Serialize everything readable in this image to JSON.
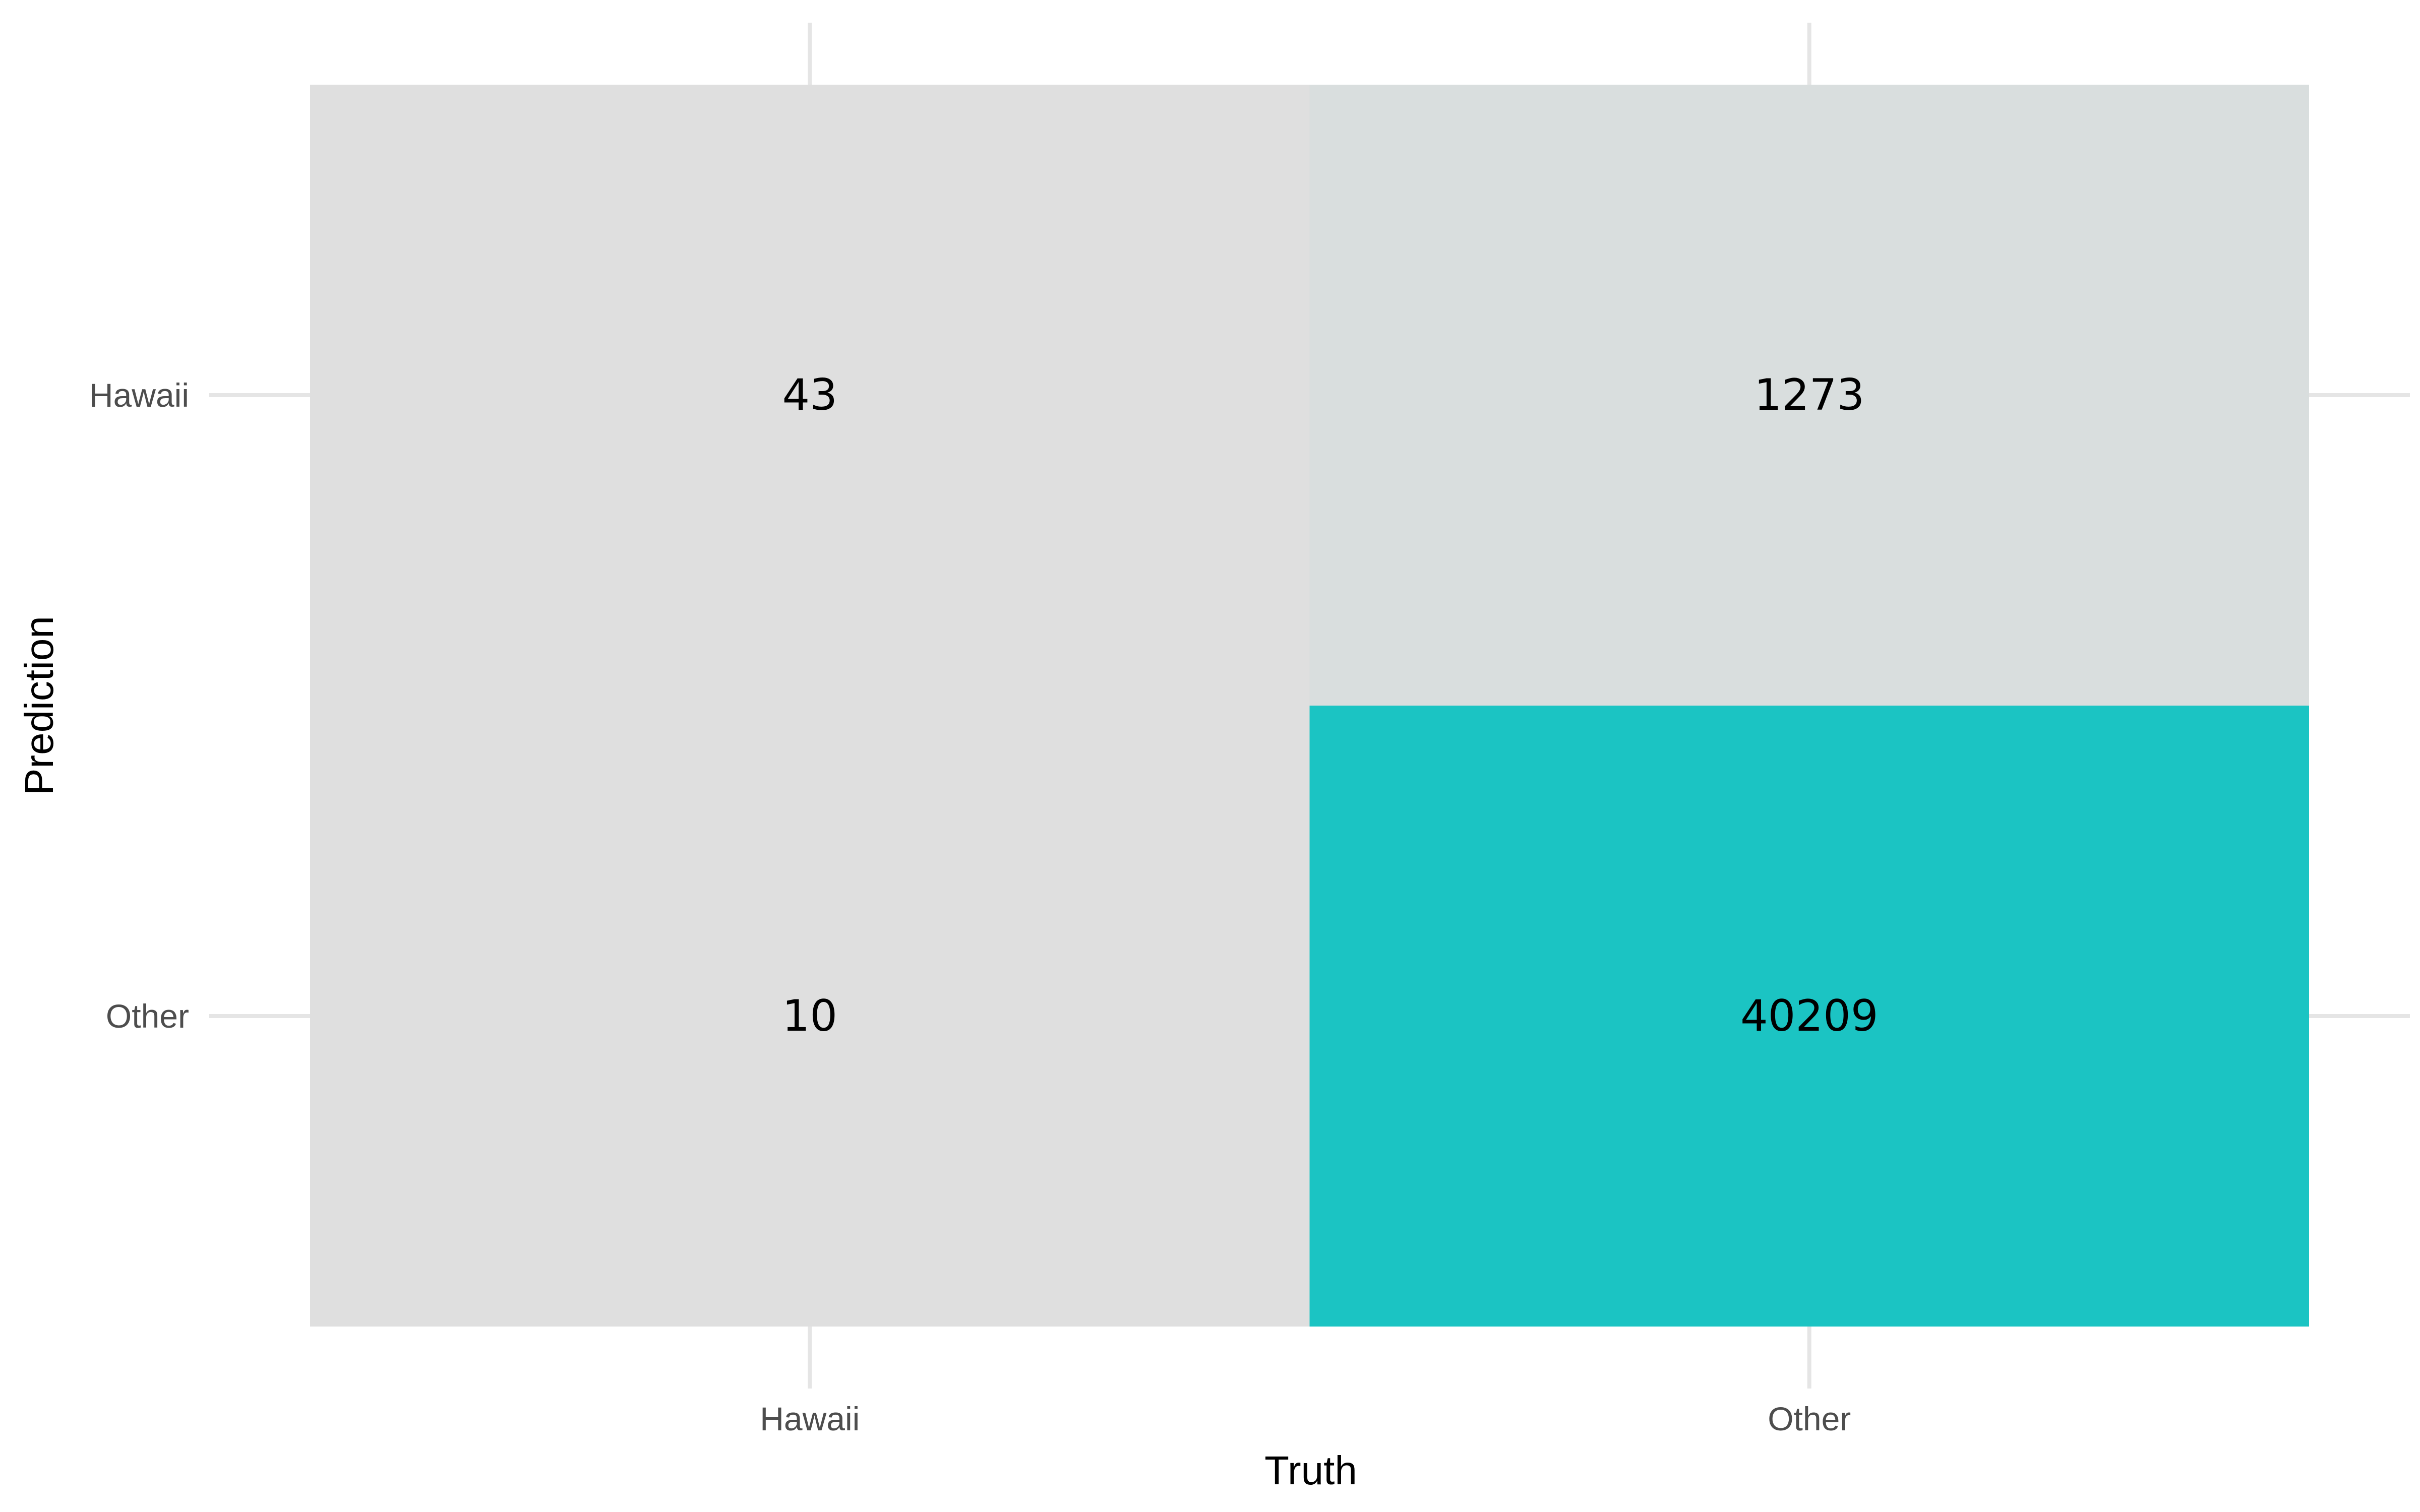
{
  "chart_data": {
    "type": "heatmap",
    "x_categories": [
      "Hawaii",
      "Other"
    ],
    "y_categories": [
      "Hawaii",
      "Other"
    ],
    "xlabel": "Truth",
    "ylabel": "Prediction",
    "cells": [
      {
        "truth": "Hawaii",
        "prediction": "Hawaii",
        "value": 43
      },
      {
        "truth": "Other",
        "prediction": "Hawaii",
        "value": 1273
      },
      {
        "truth": "Hawaii",
        "prediction": "Other",
        "value": 10
      },
      {
        "truth": "Other",
        "prediction": "Other",
        "value": 40209
      }
    ],
    "color_low": "#dfdfdf",
    "color_high": "#1bc4c3",
    "grid_color": "#e5e5e5",
    "grid": true,
    "legend": "none"
  }
}
